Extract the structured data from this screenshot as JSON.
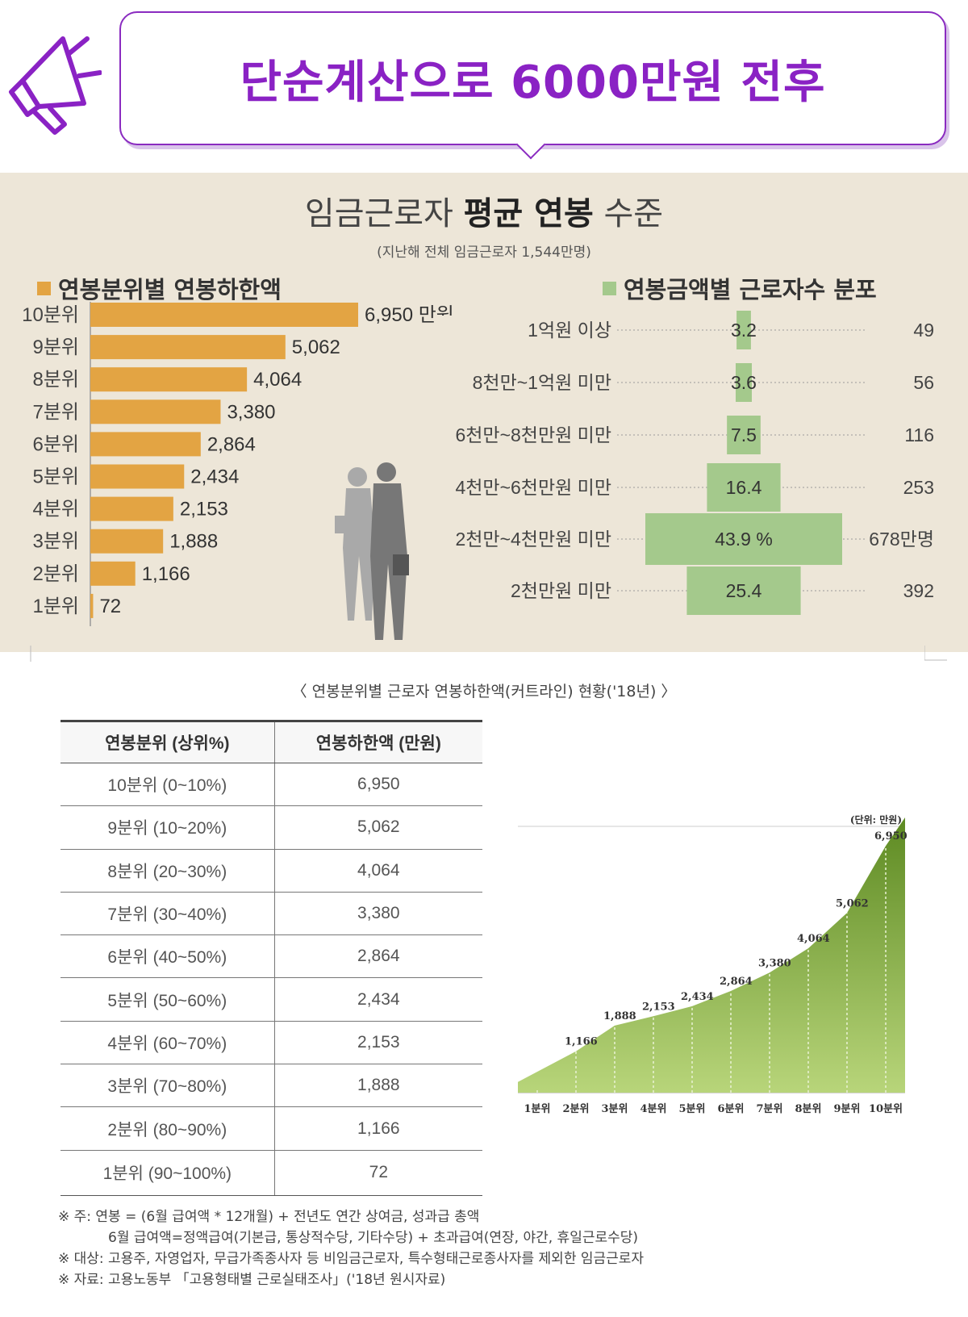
{
  "header": {
    "headline": "단순계산으로 6000만원 전후",
    "icon": "megaphone-icon",
    "accent_color": "#8a22c4"
  },
  "infographic": {
    "title_prefix": "임금근로자 ",
    "title_bold": "평균 연봉",
    "title_suffix": " 수준",
    "subtitle": "(지난해 전체 임금근로자 1,544만명)",
    "left_heading": "연봉분위별 연봉하한액",
    "right_heading": "연봉금액별 근로자수 분포",
    "bar_color": "#e3a443",
    "pyramid_color": "#a4c98c"
  },
  "chart_data": [
    {
      "type": "bar",
      "orientation": "horizontal",
      "title": "연봉분위별 연봉하한액",
      "categories": [
        "10분위",
        "9분위",
        "8분위",
        "7분위",
        "6분위",
        "5분위",
        "4분위",
        "3분위",
        "2분위",
        "1분위"
      ],
      "values": [
        6950,
        5062,
        4064,
        3380,
        2864,
        2434,
        2153,
        1888,
        1166,
        72
      ],
      "labels": [
        "6,950 만원",
        "5,062",
        "4,064",
        "3,380",
        "2,864",
        "2,434",
        "2,153",
        "1,888",
        "1,166",
        "72"
      ]
    },
    {
      "type": "bar",
      "orientation": "pyramid",
      "title": "연봉금액별 근로자수 분포",
      "categories": [
        "1억원 이상",
        "8천만~1억원 미만",
        "6천만~8천만원 미만",
        "4천만~6천만원 미만",
        "2천만~4천만원 미만",
        "2천만원 미만"
      ],
      "percent": [
        3.2,
        3.6,
        7.5,
        16.4,
        43.9,
        25.4
      ],
      "percent_labels": [
        "3.2",
        "3.6",
        "7.5",
        "16.4",
        "43.9 %",
        "25.4"
      ],
      "counts": [
        49,
        56,
        116,
        253,
        678,
        392
      ],
      "count_labels": [
        "49",
        "56",
        "116",
        "253",
        "678만명",
        "392"
      ]
    },
    {
      "type": "table",
      "caption": "〈 연봉분위별 근로자 연봉하한액(커트라인) 현황('18년) 〉",
      "columns": [
        "연봉분위 (상위%)",
        "연봉하한액 (만원)"
      ],
      "rows": [
        [
          "10분위 (0~10%)",
          "6,950"
        ],
        [
          "9분위 (10~20%)",
          "5,062"
        ],
        [
          "8분위 (20~30%)",
          "4,064"
        ],
        [
          "7분위 (30~40%)",
          "3,380"
        ],
        [
          "6분위 (40~50%)",
          "2,864"
        ],
        [
          "5분위 (50~60%)",
          "2,434"
        ],
        [
          "4분위 (60~70%)",
          "2,153"
        ],
        [
          "3분위 (70~80%)",
          "1,888"
        ],
        [
          "2분위 (80~90%)",
          "1,166"
        ],
        [
          "1분위 (90~100%)",
          "72"
        ]
      ]
    },
    {
      "type": "area",
      "unit_label": "(단위: 만원)",
      "categories": [
        "1분위",
        "2분위",
        "3분위",
        "4분위",
        "5분위",
        "6분위",
        "7분위",
        "8분위",
        "9분위",
        "10분위"
      ],
      "values": [
        72,
        1166,
        1888,
        2153,
        2434,
        2864,
        3380,
        4064,
        5062,
        6950
      ],
      "value_labels": [
        "",
        "1,166",
        "1,888",
        "2,153",
        "2,434",
        "2,864",
        "3,380",
        "4,064",
        "5,062",
        "6,950"
      ],
      "ylim": [
        0,
        7500
      ],
      "color": "#6f9c32"
    }
  ],
  "notes": [
    "※ 주: 연봉 = (6월 급여액 * 12개월) + 전년도 연간 상여금, 성과급 총액",
    "6월 급여액=정액급여(기본급, 통상적수당, 기타수당) + 초과급여(연장, 야간, 휴일근로수당)",
    "※ 대상: 고용주, 자영업자, 무급가족종사자 등 비임금근로자, 특수형태근로종사자를 제외한 임금근로자",
    "※ 자료: 고용노동부 「고용형태별 근로실태조사」('18년 원시자료)"
  ]
}
